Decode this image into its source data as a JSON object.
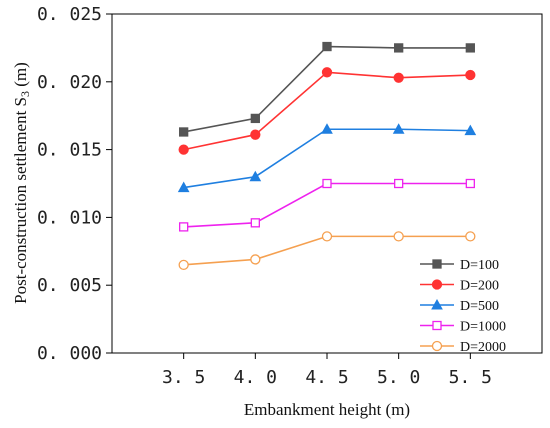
{
  "chart_data": {
    "type": "line",
    "x": [
      3.5,
      4.0,
      4.5,
      5.0,
      5.5
    ],
    "x_tick_labels": [
      "3. 5",
      "4. 0",
      "4. 5",
      "5. 0",
      "5. 5"
    ],
    "y_ticks": [
      0.0,
      0.005,
      0.01,
      0.015,
      0.02,
      0.025
    ],
    "y_tick_labels": [
      "0. 000",
      "0. 005",
      "0. 010",
      "0. 015",
      "0. 020",
      "0. 025"
    ],
    "xlim": [
      3.0,
      6.0
    ],
    "ylim": [
      0.0,
      0.025
    ],
    "xlabel": "Embankment height (m)",
    "ylabel": "Post-construction settlement S",
    "ylabel_subscript": "3",
    "ylabel_suffix": " (m)",
    "grid": false,
    "legend_position": "bottom-right",
    "series": [
      {
        "name": "D=100",
        "color": "#555555",
        "marker": "square-filled",
        "values": [
          0.0163,
          0.0173,
          0.0226,
          0.0225,
          0.0225
        ]
      },
      {
        "name": "D=200",
        "color": "#ff3333",
        "marker": "circle-filled",
        "values": [
          0.015,
          0.0161,
          0.0207,
          0.0203,
          0.0205
        ]
      },
      {
        "name": "D=500",
        "color": "#1f7fe0",
        "marker": "triangle-filled",
        "values": [
          0.0122,
          0.013,
          0.0165,
          0.0165,
          0.0164
        ]
      },
      {
        "name": "D=1000",
        "color": "#ee22ee",
        "marker": "square-open",
        "values": [
          0.0093,
          0.0096,
          0.0125,
          0.0125,
          0.0125
        ]
      },
      {
        "name": "D=2000",
        "color": "#f5a050",
        "marker": "circle-open",
        "values": [
          0.0065,
          0.0069,
          0.0086,
          0.0086,
          0.0086
        ]
      }
    ]
  }
}
